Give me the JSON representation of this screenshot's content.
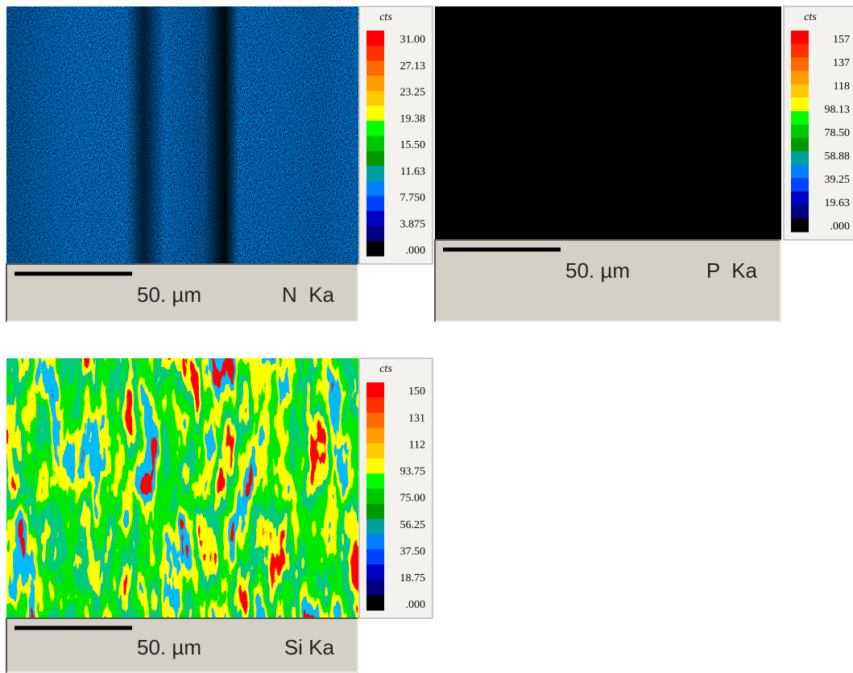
{
  "panels": [
    {
      "unit": "cts",
      "scale": [
        "31.00",
        "27.13",
        "23.25",
        "19.38",
        "15.50",
        "11.63",
        "7.750",
        "3.875",
        ".000"
      ],
      "scale_bar": "50. µm",
      "element": "N  Ka"
    },
    {
      "unit": "cts",
      "scale": [
        "157",
        "137",
        "118",
        "98.13",
        "78.50",
        "58.88",
        "39.25",
        "19.63",
        ".000"
      ],
      "scale_bar": "50. µm",
      "element": "P  Ka"
    },
    {
      "unit": "cts",
      "scale": [
        "150",
        "131",
        "112",
        "93.75",
        "75.00",
        "56.25",
        "37.50",
        "18.75",
        ".000"
      ],
      "scale_bar": "50. µm",
      "element": "Si Ka"
    }
  ]
}
